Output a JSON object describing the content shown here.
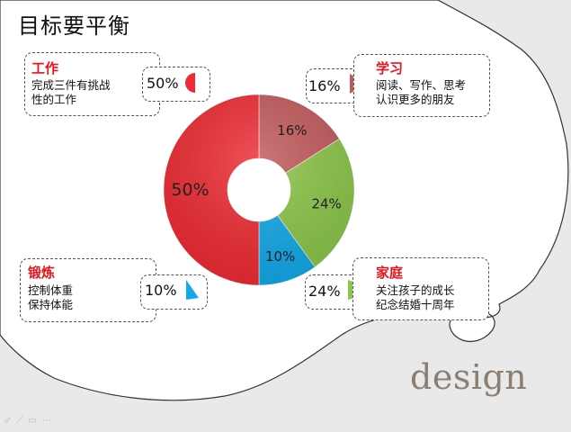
{
  "slide": {
    "title": "目标要平衡",
    "watermark": "design"
  },
  "categories": {
    "work": {
      "title": "工作",
      "desc": "完成三件有挑战\n性的工作",
      "percent": "50%",
      "value": 50,
      "color": "#ee2b34"
    },
    "study": {
      "title": "学习",
      "desc": "阅读、写作、思考\n认识更多的朋友",
      "percent": "16%",
      "value": 16,
      "color": "#c1595b"
    },
    "exercise": {
      "title": "锻炼",
      "desc": "控制体重\n保持体能",
      "percent": "10%",
      "value": 10,
      "color": "#13a8e8"
    },
    "family": {
      "title": "家庭",
      "desc": "关注孩子的成长\n纪念结婚十周年",
      "percent": "24%",
      "value": 24,
      "color": "#8bc549"
    }
  },
  "chart_data": {
    "type": "pie",
    "subtype": "donut",
    "categories": [
      "学习",
      "家庭",
      "锻炼",
      "工作"
    ],
    "values": [
      16,
      24,
      10,
      50
    ],
    "labels": [
      "16%",
      "24%",
      "10%",
      "50%"
    ],
    "colors": [
      "#c1595b",
      "#8bc549",
      "#13a8e8",
      "#ee2b34"
    ]
  },
  "toolbar": {
    "icons": [
      "arrow-icon",
      "pen-icon",
      "menu-icon",
      "more-icon"
    ],
    "glyphs": "⬃⟋▭⋯"
  }
}
